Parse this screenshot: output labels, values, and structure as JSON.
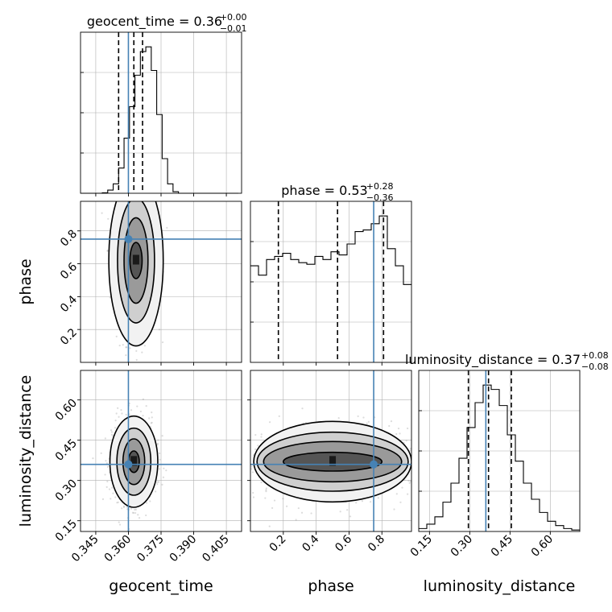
{
  "chart_data": {
    "type": "corner",
    "parameters": [
      {
        "key": "geocent_time",
        "label": "geocent_time",
        "range": [
          0.338,
          0.412
        ],
        "ticks": [
          "0.345",
          "0.360",
          "0.375",
          "0.390",
          "0.405"
        ],
        "tick_values": [
          0.345,
          0.36,
          0.375,
          0.39,
          0.405
        ],
        "truth": 0.36
      },
      {
        "key": "phase",
        "label": "phase",
        "range": [
          0.0,
          0.98
        ],
        "ticks": [
          "0.2",
          "0.4",
          "0.6",
          "0.8"
        ],
        "tick_values": [
          0.2,
          0.4,
          0.6,
          0.8
        ],
        "truth": 0.75
      },
      {
        "key": "luminosity_distance",
        "label": "luminosity_distance",
        "range": [
          0.11,
          0.71
        ],
        "ticks": [
          "0.15",
          "0.30",
          "0.45",
          "0.60"
        ],
        "tick_values": [
          0.15,
          0.3,
          0.45,
          0.6
        ],
        "truth": 0.36
      }
    ],
    "diagonal": [
      {
        "title_main": "geocent_time = 0.36",
        "title_sup": "+0.00",
        "title_sub": "−0.01",
        "quantiles": [
          0.3555,
          0.3625,
          0.3665
        ],
        "bins": [
          0.338,
          0.3405,
          0.343,
          0.3455,
          0.348,
          0.3505,
          0.353,
          0.3555,
          0.358,
          0.3605,
          0.363,
          0.3655,
          0.368,
          0.3705,
          0.373,
          0.3755,
          0.378,
          0.3805,
          0.383,
          0.3855,
          0.388,
          0.3905,
          0.393,
          0.3955,
          0.398,
          0.4005,
          0.403,
          0.4055,
          0.408,
          0.4105
        ],
        "counts": [
          0,
          0,
          0,
          0,
          0.3,
          2,
          6,
          16,
          35,
          55,
          75,
          90,
          93,
          78,
          50,
          22,
          6,
          1,
          0,
          0,
          0,
          0,
          0,
          0,
          0,
          0,
          0,
          0,
          0
        ]
      },
      {
        "title_main": "phase = 0.53",
        "title_sup": "+0.28",
        "title_sub": "−0.36",
        "quantiles": [
          0.17,
          0.53,
          0.81
        ],
        "bins": [
          0.0,
          0.049,
          0.098,
          0.147,
          0.196,
          0.245,
          0.294,
          0.343,
          0.392,
          0.441,
          0.49,
          0.539,
          0.588,
          0.637,
          0.686,
          0.735,
          0.784,
          0.833,
          0.882,
          0.931,
          0.98
        ],
        "counts": [
          0.62,
          0.56,
          0.66,
          0.68,
          0.7,
          0.66,
          0.64,
          0.63,
          0.68,
          0.66,
          0.71,
          0.69,
          0.76,
          0.84,
          0.85,
          0.89,
          0.94,
          0.73,
          0.62,
          0.5
        ]
      },
      {
        "title_main": "luminosity_distance = 0.37",
        "title_sup": "+0.08",
        "title_sub": "−0.08",
        "quantiles": [
          0.295,
          0.37,
          0.455
        ],
        "bins": [
          0.11,
          0.14,
          0.17,
          0.2,
          0.23,
          0.26,
          0.29,
          0.32,
          0.35,
          0.38,
          0.41,
          0.44,
          0.47,
          0.5,
          0.53,
          0.56,
          0.59,
          0.62,
          0.65,
          0.68,
          0.71
        ],
        "counts": [
          0.02,
          0.05,
          0.1,
          0.2,
          0.33,
          0.5,
          0.71,
          0.88,
          1.0,
          0.97,
          0.86,
          0.66,
          0.48,
          0.33,
          0.22,
          0.13,
          0.07,
          0.04,
          0.02,
          0.01
        ]
      }
    ],
    "pairs": [
      {
        "x": "geocent_time",
        "y": "phase",
        "center": [
          0.3635,
          0.62
        ],
        "spread": [
          0.0045,
          0.25
        ],
        "levels": [
          [
            0.0125,
            0.52
          ],
          [
            0.0085,
            0.38
          ],
          [
            0.0055,
            0.26
          ],
          [
            0.0028,
            0.11
          ]
        ]
      },
      {
        "x": "geocent_time",
        "y": "luminosity_distance",
        "center": [
          0.3625,
          0.37
        ],
        "spread": [
          0.005,
          0.08
        ],
        "levels": [
          [
            0.011,
            0.17
          ],
          [
            0.0078,
            0.125
          ],
          [
            0.005,
            0.085
          ],
          [
            0.0025,
            0.04
          ]
        ]
      },
      {
        "x": "phase",
        "y": "luminosity_distance",
        "center": [
          0.5,
          0.37
        ],
        "spread": [
          0.28,
          0.08
        ],
        "levels": [
          [
            0.48,
            0.15
          ],
          [
            0.46,
            0.11
          ],
          [
            0.42,
            0.075
          ],
          [
            0.3,
            0.035
          ]
        ]
      }
    ],
    "grid": true,
    "truth_color": "#4682b4"
  }
}
